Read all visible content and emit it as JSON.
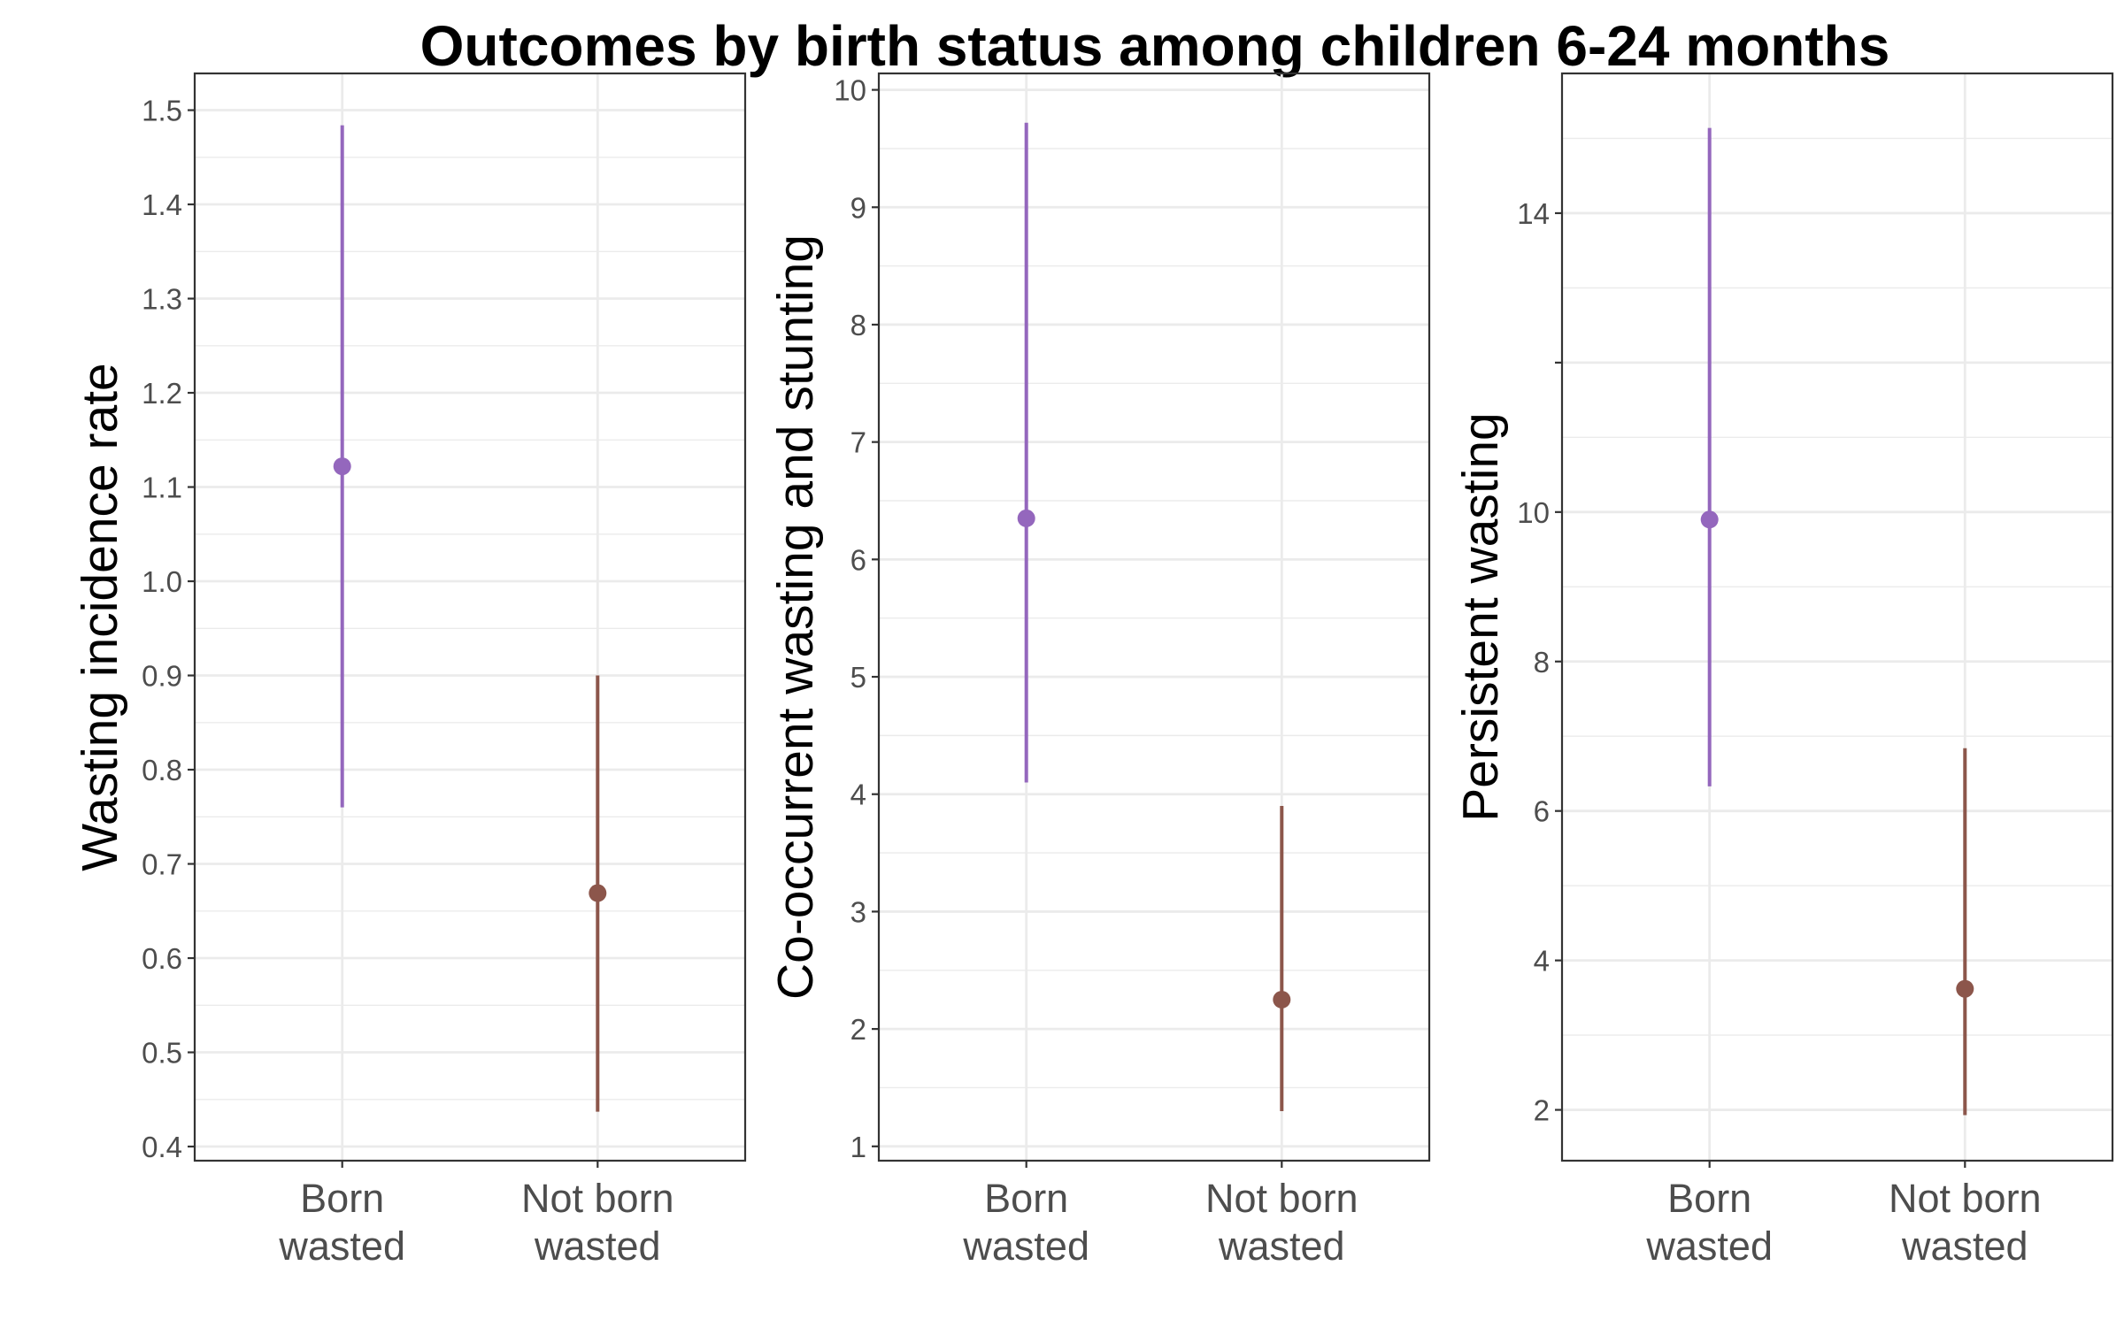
{
  "title": "Outcomes by birth status among children 6-24 months",
  "colors": {
    "born_wasted": "#9467bd",
    "not_born_wasted": "#8c564b"
  },
  "chart_data": [
    {
      "type": "scatter",
      "ylabel": "Wasting incidence rate",
      "categories": [
        "Born\nwasted",
        "Not born\nwasted"
      ],
      "yticks": [
        "0.4",
        "0.5",
        "0.6",
        "0.7",
        "0.8",
        "0.9",
        "1.0",
        "1.1",
        "1.2",
        "1.3",
        "1.4",
        "1.5"
      ],
      "ylim": [
        0.385,
        1.539
      ],
      "estimates": [
        1.122,
        0.669
      ],
      "lower": [
        0.76,
        0.437
      ],
      "upper": [
        1.484,
        0.9
      ],
      "grid": true
    },
    {
      "type": "scatter",
      "ylabel": "Co-occurrent wasting and stunting",
      "categories": [
        "Born\nwasted",
        "Not born\nwasted"
      ],
      "yticks": [
        "1",
        "2",
        "3",
        "4",
        "5",
        "6",
        "7",
        "8",
        "9",
        "10"
      ],
      "ylim": [
        0.878,
        10.14
      ],
      "estimates": [
        6.35,
        2.25
      ],
      "lower": [
        4.1,
        1.3
      ],
      "upper": [
        9.72,
        3.9
      ],
      "grid": true
    },
    {
      "type": "scatter",
      "ylabel": "Persistent wasting",
      "categories": [
        "Born\nwasted",
        "Not born\nwasted"
      ],
      "yticks": [
        "2",
        "4",
        "6",
        "8",
        "10",
        "14"
      ],
      "ytick_values": [
        2,
        4,
        6,
        8,
        10,
        14
      ],
      "ylim": [
        1.32,
        15.87
      ],
      "estimates": [
        9.9,
        3.62
      ],
      "lower": [
        6.33,
        1.93
      ],
      "upper": [
        15.14,
        6.84
      ],
      "grid": true
    }
  ]
}
